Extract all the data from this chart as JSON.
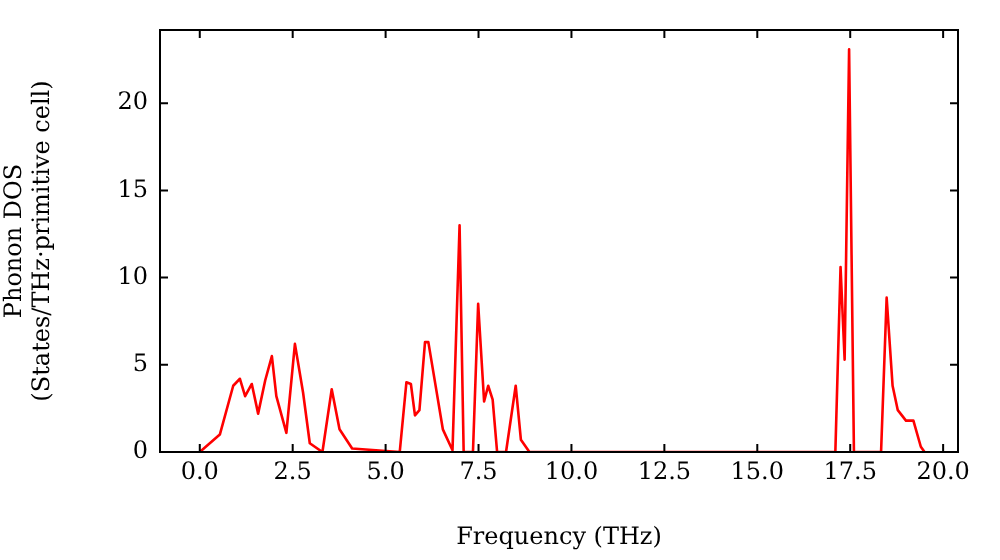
{
  "chart_data": {
    "type": "line",
    "xlabel": "Frequency (THz)",
    "ylabel": "Phonon DOS\n(States/THz·primitive cell)",
    "xlim": [
      -1.07,
      20.4
    ],
    "ylim": [
      0,
      24.2
    ],
    "xticks": [
      {
        "value": 0,
        "label": "0.0"
      },
      {
        "value": 2.5,
        "label": "2.5"
      },
      {
        "value": 5,
        "label": "5.0"
      },
      {
        "value": 7.5,
        "label": "7.5"
      },
      {
        "value": 10,
        "label": "10.0"
      },
      {
        "value": 12.5,
        "label": "12.5"
      },
      {
        "value": 15,
        "label": "15.0"
      },
      {
        "value": 17.5,
        "label": "17.5"
      },
      {
        "value": 20,
        "label": "20.0"
      }
    ],
    "yticks": [
      0,
      5,
      10,
      15,
      20
    ],
    "grid": false,
    "legend": false,
    "marker": "none",
    "line_style": "solid",
    "series": [
      {
        "color": "#ff0000",
        "x": [
          0,
          0.54,
          0.9,
          1.08,
          1.22,
          1.4,
          1.57,
          1.76,
          1.94,
          2.06,
          2.33,
          2.56,
          2.78,
          2.96,
          3.3,
          3.55,
          3.76,
          4.1,
          5.38,
          5.56,
          5.68,
          5.79,
          5.91,
          6.06,
          6.15,
          6.54,
          6.8,
          6.99,
          7.1,
          7.35,
          7.49,
          7.65,
          7.76,
          7.88,
          8.0,
          8.24,
          8.5,
          8.64,
          8.87,
          17.1,
          17.24,
          17.35,
          17.47,
          17.6,
          18.33,
          18.48,
          18.64,
          18.78,
          19.0,
          19.2,
          19.4,
          19.5
        ],
        "values": [
          0,
          1.0,
          3.8,
          4.2,
          3.2,
          3.9,
          2.2,
          4.1,
          5.5,
          3.2,
          1.1,
          6.2,
          3.4,
          0.5,
          0,
          3.6,
          1.3,
          0.2,
          0,
          4.0,
          3.9,
          2.1,
          2.4,
          6.3,
          6.3,
          1.3,
          0.1,
          13.0,
          0,
          0,
          8.5,
          2.9,
          3.8,
          3.0,
          0,
          0,
          3.8,
          0.7,
          0,
          0,
          10.6,
          5.3,
          23.1,
          0,
          0,
          8.85,
          3.8,
          2.4,
          1.8,
          1.8,
          0.3,
          0
        ]
      }
    ]
  }
}
